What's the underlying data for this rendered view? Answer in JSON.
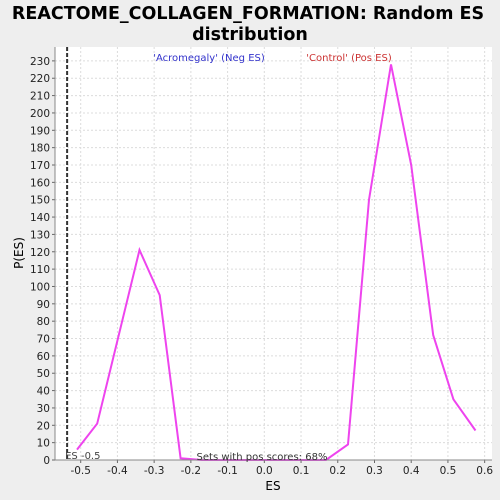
{
  "chart_data": {
    "type": "line",
    "title_lines": [
      "REACTOME_COLLAGEN_FORMATION: Random ES",
      "distribution"
    ],
    "xlabel": "ES",
    "ylabel": "P(ES)",
    "xlim": [
      -0.57,
      0.62
    ],
    "ylim": [
      0,
      238
    ],
    "x_ticks": [
      -0.5,
      -0.4,
      -0.3,
      -0.2,
      -0.1,
      0.0,
      0.1,
      0.2,
      0.3,
      0.4,
      0.5,
      0.6
    ],
    "x_tick_labels": [
      "-0.5",
      "-0.4",
      "-0.3",
      "-0.2",
      "-0.1",
      "0.0",
      "0.1",
      "0.2",
      "0.3",
      "0.4",
      "0.5",
      "0.6"
    ],
    "y_ticks": [
      0,
      10,
      20,
      30,
      40,
      50,
      60,
      70,
      80,
      90,
      100,
      110,
      120,
      130,
      140,
      150,
      160,
      170,
      180,
      190,
      200,
      210,
      220,
      230
    ],
    "y_tick_labels": [
      "0",
      "10",
      "20",
      "30",
      "40",
      "50",
      "60",
      "70",
      "80",
      "90",
      "100",
      "110",
      "120",
      "130",
      "140",
      "150",
      "160",
      "170",
      "180",
      "190",
      "200",
      "210",
      "220",
      "230"
    ],
    "grid": true,
    "series": [
      {
        "color": "#ee44ee",
        "x": [
          -0.51,
          -0.455,
          -0.34,
          -0.285,
          -0.228,
          -0.17,
          -0.115,
          -0.058,
          0.0,
          0.055,
          0.112,
          0.168,
          0.228,
          0.285,
          0.345,
          0.4,
          0.46,
          0.515,
          0.575
        ],
        "y": [
          6,
          21,
          121,
          95,
          1,
          0,
          0,
          0,
          0,
          0,
          0,
          0,
          9,
          150,
          228,
          170,
          72,
          35,
          17
        ]
      }
    ],
    "es_marker": {
      "x": -0.537,
      "label": "ES -0.5",
      "color": "#333333"
    },
    "annotations": {
      "neg_label": "'Acromegaly' (Neg ES)",
      "neg_color": "#3333cc",
      "pos_label": "'Control' (Pos ES)",
      "pos_color": "#cc3333",
      "sets_label": "Sets with pos scores: 68%"
    }
  }
}
